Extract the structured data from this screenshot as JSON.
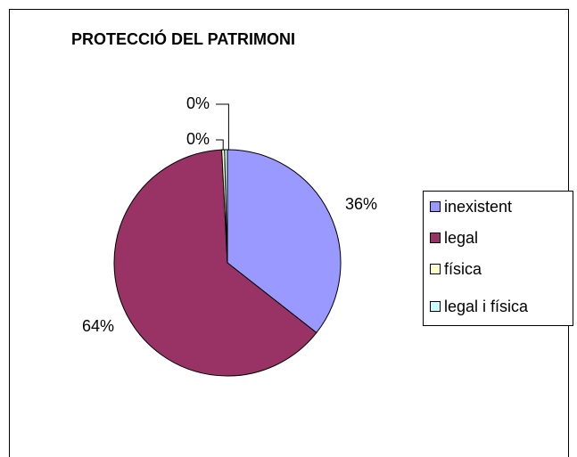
{
  "chart_data": {
    "type": "pie",
    "title": "PROTECCIÓ DEL PATRIMONI",
    "categories": [
      "inexistent",
      "legal",
      "física",
      "legal i física"
    ],
    "values": [
      35.6,
      63.6,
      0.4,
      0.4
    ],
    "value_labels": [
      "36%",
      "64%",
      "0%",
      "0%"
    ],
    "colors": [
      "#9999ff",
      "#993366",
      "#ffffcc",
      "#ccffff"
    ],
    "legend": "right"
  }
}
